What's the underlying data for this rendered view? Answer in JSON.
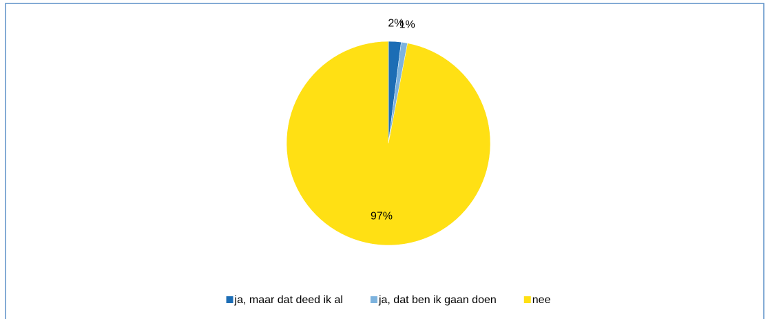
{
  "chart_data": {
    "type": "pie",
    "categories": [
      "ja, maar dat deed ik al",
      "ja, dat ben ik gaan doen",
      "nee"
    ],
    "values": [
      2,
      1,
      97
    ],
    "value_labels": [
      "2%",
      "1%",
      "97%"
    ],
    "colors": [
      "#1c6db5",
      "#7db3de",
      "#ffe014"
    ],
    "legend": "bottom"
  }
}
